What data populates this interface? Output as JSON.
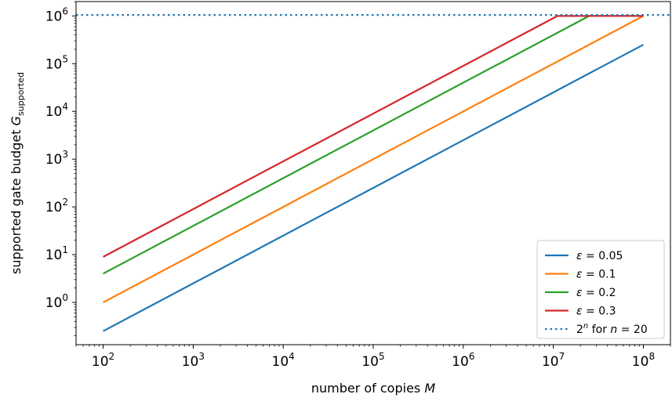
{
  "chart_data": {
    "type": "line",
    "xscale": "log",
    "yscale": "log",
    "xlim": [
      50,
      200000000
    ],
    "ylim": [
      0.13,
      2000000
    ],
    "xlabel": {
      "text": "number of copies ",
      "var": "M"
    },
    "ylabel": {
      "text": "supported gate budget ",
      "var": "G",
      "sub": "supported"
    },
    "xticks": [
      {
        "value": 100,
        "base": "10",
        "exp": "2"
      },
      {
        "value": 1000,
        "base": "10",
        "exp": "3"
      },
      {
        "value": 10000,
        "base": "10",
        "exp": "4"
      },
      {
        "value": 100000,
        "base": "10",
        "exp": "5"
      },
      {
        "value": 1000000,
        "base": "10",
        "exp": "6"
      },
      {
        "value": 10000000,
        "base": "10",
        "exp": "7"
      },
      {
        "value": 100000000,
        "base": "10",
        "exp": "8"
      }
    ],
    "yticks": [
      {
        "value": 1,
        "base": "10",
        "exp": "0"
      },
      {
        "value": 10,
        "base": "10",
        "exp": "1"
      },
      {
        "value": 100,
        "base": "10",
        "exp": "2"
      },
      {
        "value": 1000,
        "base": "10",
        "exp": "3"
      },
      {
        "value": 10000,
        "base": "10",
        "exp": "4"
      },
      {
        "value": 100000,
        "base": "10",
        "exp": "5"
      },
      {
        "value": 1000000,
        "base": "10",
        "exp": "6"
      }
    ],
    "series": [
      {
        "name": "ε = 0.05",
        "label_var": "ε",
        "label_val": " = 0.05",
        "color": "#1f77b4",
        "style": "solid",
        "points": [
          [
            100,
            0.25
          ],
          [
            100000000,
            250000
          ]
        ]
      },
      {
        "name": "ε = 0.1",
        "label_var": "ε",
        "label_val": " = 0.1",
        "color": "#ff7f0e",
        "style": "solid",
        "points": [
          [
            100,
            1
          ],
          [
            100000000,
            1000000
          ]
        ]
      },
      {
        "name": "ε = 0.2",
        "label_var": "ε",
        "label_val": " = 0.2",
        "color": "#2ca02c",
        "style": "solid",
        "points": [
          [
            100,
            4
          ],
          [
            25000000,
            1000000
          ],
          [
            100000000,
            1000000
          ]
        ]
      },
      {
        "name": "ε = 0.3",
        "label_var": "ε",
        "label_val": " = 0.3",
        "color": "#d62728",
        "style": "solid",
        "points": [
          [
            100,
            9
          ],
          [
            11111111,
            1000000
          ],
          [
            100000000,
            1000000
          ]
        ]
      }
    ],
    "reference_line": {
      "name": "2ⁿ for n = 20",
      "label_base": "2",
      "label_exp": "n",
      "label_mid": " for ",
      "label_var": "n",
      "label_val": " = 20",
      "color": "#1f77b4",
      "style": "dotted",
      "y": 1048576
    },
    "legend": "lower-right",
    "grid": false
  }
}
